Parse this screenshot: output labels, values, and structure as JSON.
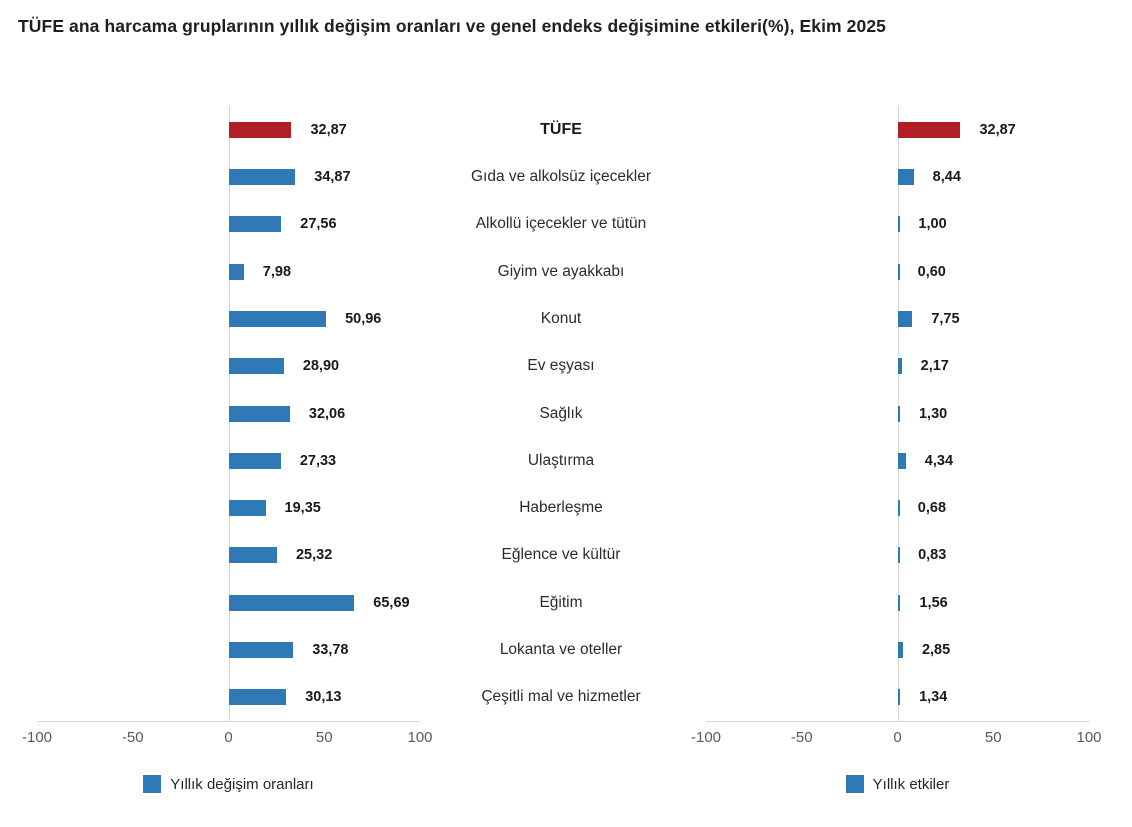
{
  "title": "TÜFE ana harcama gruplarının yıllık değişim oranları ve genel endeks değişimine etkileri(%), Ekim 2025",
  "colors": {
    "bar_blue": "#2e79b6",
    "bar_red": "#af1f24",
    "axis_line": "#d6d6d6",
    "tick_text": "#595959",
    "value_text": "#1a1a1a"
  },
  "chart_data": {
    "type": "bar",
    "orientation": "horizontal",
    "categories": [
      "TÜFE",
      "Gıda ve alkolsüz içecekler",
      "Alkollü içecekler ve tütün",
      "Giyim ve ayakkabı",
      "Konut",
      "Ev eşyası",
      "Sağlık",
      "Ulaştırma",
      "Haberleşme",
      "Eğlence ve kültür",
      "Eğitim",
      "Lokanta ve oteller",
      "Çeşitli mal ve hizmetler"
    ],
    "highlight_category": "TÜFE",
    "xlim": [
      -100,
      100
    ],
    "ticks": [
      "-100",
      "-50",
      "0",
      "50",
      "100"
    ],
    "grid": false,
    "legend_position": "bottom",
    "series": [
      {
        "name": "Yıllık değişim oranları",
        "values": [
          32.87,
          34.87,
          27.56,
          7.98,
          50.96,
          28.9,
          32.06,
          27.33,
          19.35,
          25.32,
          65.69,
          33.78,
          30.13
        ],
        "labels": [
          "32,87",
          "34,87",
          "27,56",
          "7,98",
          "50,96",
          "28,90",
          "32,06",
          "27,33",
          "19,35",
          "25,32",
          "65,69",
          "33,78",
          "30,13"
        ]
      },
      {
        "name": "Yıllık etkiler",
        "values": [
          32.87,
          8.44,
          1.0,
          0.6,
          7.75,
          2.17,
          1.3,
          4.34,
          0.68,
          0.83,
          1.56,
          2.85,
          1.34
        ],
        "labels": [
          "32,87",
          "8,44",
          "1,00",
          "0,60",
          "7,75",
          "2,17",
          "1,30",
          "4,34",
          "0,68",
          "0,83",
          "1,56",
          "2,85",
          "1,34"
        ]
      }
    ]
  }
}
